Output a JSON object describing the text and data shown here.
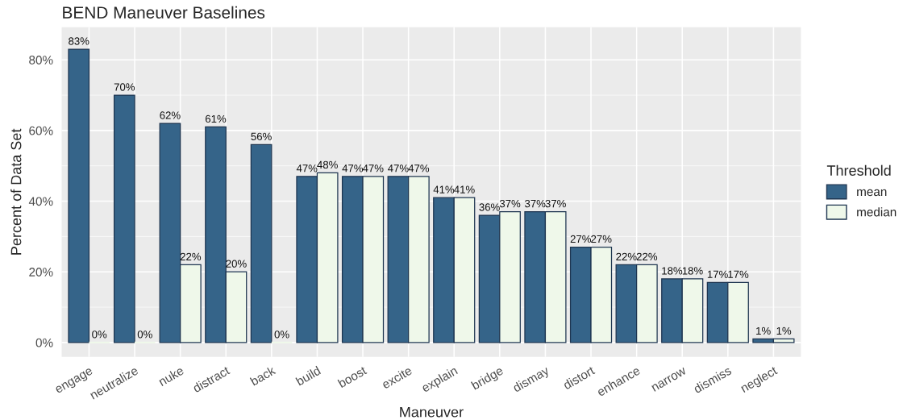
{
  "chart_data": {
    "type": "bar",
    "title": "BEND Maneuver Baselines",
    "xlabel": "Maneuver",
    "ylabel": "Percent of Data Set",
    "legend_title": "Threshold",
    "legend": "right",
    "grid": true,
    "categories": [
      "engage",
      "neutralize",
      "nuke",
      "distract",
      "back",
      "build",
      "boost",
      "excite",
      "explain",
      "bridge",
      "dismay",
      "distort",
      "enhance",
      "narrow",
      "dismiss",
      "neglect"
    ],
    "series": [
      {
        "name": "mean",
        "color": "#356489",
        "values": [
          83,
          70,
          62,
          61,
          56,
          47,
          47,
          47,
          41,
          36,
          37,
          27,
          22,
          18,
          17,
          1
        ],
        "value_labels": [
          "83%",
          "70%",
          "62%",
          "61%",
          "56%",
          "47%",
          "47%",
          "47%",
          "41%",
          "36%",
          "37%",
          "27%",
          "22%",
          "18%",
          "17%",
          "1%"
        ]
      },
      {
        "name": "median",
        "color": "#eff8ea",
        "values": [
          0,
          0,
          22,
          20,
          0,
          48,
          47,
          47,
          41,
          37,
          37,
          27,
          22,
          18,
          17,
          1
        ],
        "value_labels": [
          "0%",
          "0%",
          "22%",
          "20%",
          "0%",
          "48%",
          "47%",
          "47%",
          "41%",
          "37%",
          "37%",
          "27%",
          "22%",
          "18%",
          "17%",
          "1%"
        ]
      }
    ],
    "ylim": [
      -4.1,
      89.2
    ],
    "yticks": [
      {
        "value": 0,
        "label": "0%"
      },
      {
        "value": 20,
        "label": "20%"
      },
      {
        "value": 40,
        "label": "40%"
      },
      {
        "value": 60,
        "label": "60%"
      },
      {
        "value": 80,
        "label": "80%"
      }
    ]
  }
}
